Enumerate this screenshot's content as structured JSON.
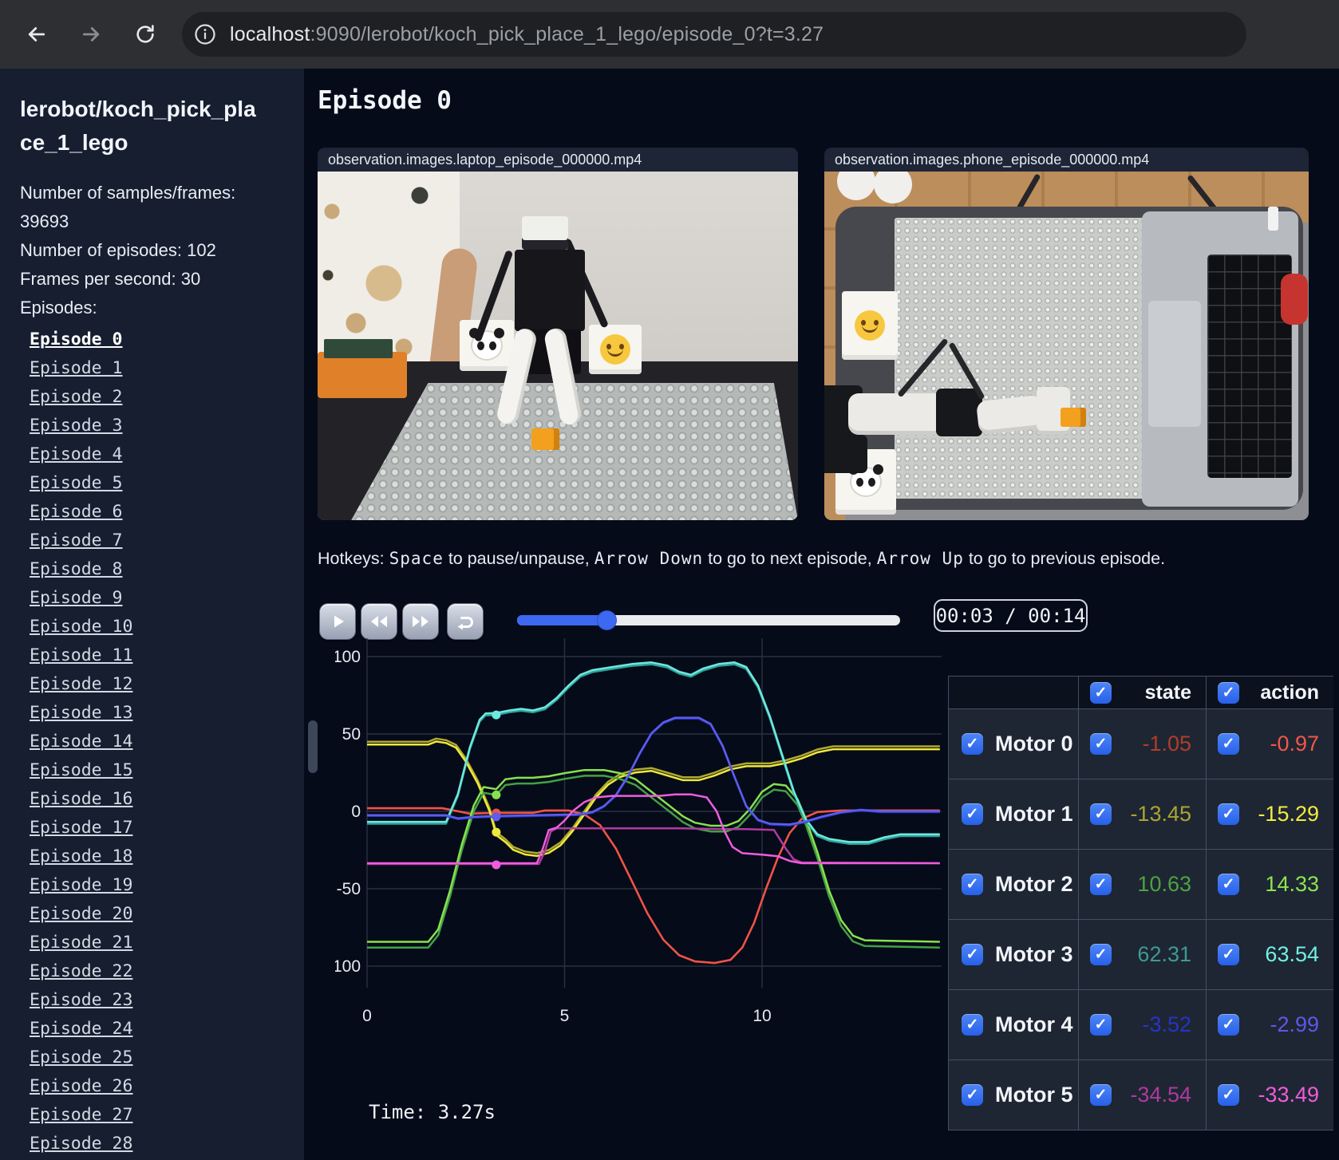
{
  "browser": {
    "url_host": "localhost",
    "url_rest": ":9090/lerobot/koch_pick_place_1_lego/episode_0?t=3.27"
  },
  "sidebar": {
    "title": "lerobot/koch_pick_place_1_lego",
    "stats": [
      "Number of samples/frames: 39693",
      "Number of episodes: 102",
      "Frames per second: 30"
    ],
    "episodes_label": "Episodes:",
    "active_episode": "Episode 0",
    "episodes": [
      "Episode 0",
      "Episode 1",
      "Episode 2",
      "Episode 3",
      "Episode 4",
      "Episode 5",
      "Episode 6",
      "Episode 7",
      "Episode 8",
      "Episode 9",
      "Episode 10",
      "Episode 11",
      "Episode 12",
      "Episode 13",
      "Episode 14",
      "Episode 15",
      "Episode 16",
      "Episode 17",
      "Episode 18",
      "Episode 19",
      "Episode 20",
      "Episode 21",
      "Episode 22",
      "Episode 23",
      "Episode 24",
      "Episode 25",
      "Episode 26",
      "Episode 27",
      "Episode 28"
    ]
  },
  "main": {
    "heading": "Episode 0",
    "videos": [
      {
        "title": "observation.images.laptop_episode_000000.mp4"
      },
      {
        "title": "observation.images.phone_episode_000000.mp4"
      }
    ],
    "hotkeys_segments": [
      {
        "text": "Hotkeys: ",
        "mono": false
      },
      {
        "text": "Space",
        "mono": true
      },
      {
        "text": " to pause/unpause, ",
        "mono": false
      },
      {
        "text": "Arrow Down",
        "mono": true
      },
      {
        "text": " to go to next episode, ",
        "mono": false
      },
      {
        "text": "Arrow Up",
        "mono": true
      },
      {
        "text": " to go to previous episode.",
        "mono": false
      }
    ],
    "player": {
      "time": "00:03 / 00:14",
      "progress_pct": 23.4
    },
    "time_label": "Time: 3.27s"
  },
  "table": {
    "headers": [
      "state",
      "action"
    ],
    "rows": [
      {
        "label": "Motor 0",
        "state": "-1.05",
        "action": "-0.97",
        "state_color": "#b23c2b",
        "action_color": "#f3564a"
      },
      {
        "label": "Motor 1",
        "state": "-13.45",
        "action": "-15.29",
        "state_color": "#aaa431",
        "action_color": "#f2ec3e"
      },
      {
        "label": "Motor 2",
        "state": "10.63",
        "action": "14.33",
        "state_color": "#4da33f",
        "action_color": "#8ce44e"
      },
      {
        "label": "Motor 3",
        "state": "62.31",
        "action": "63.54",
        "state_color": "#3f9a92",
        "action_color": "#72efe0"
      },
      {
        "label": "Motor 4",
        "state": "-3.52",
        "action": "-2.99",
        "state_color": "#2634c6",
        "action_color": "#5b58ea"
      },
      {
        "label": "Motor 5",
        "state": "-34.54",
        "action": "-33.49",
        "state_color": "#ae3a9d",
        "action_color": "#ee5cd9"
      }
    ]
  },
  "chart_data": {
    "type": "line",
    "xlabel": "",
    "ylabel": "",
    "x_ticks": [
      0,
      5,
      10
    ],
    "y_ticks": [
      100,
      50,
      0,
      -50,
      -100
    ],
    "xlim": [
      0,
      14.55
    ],
    "ylim": [
      -117,
      112
    ],
    "grid": true,
    "marker_t": 3.27,
    "series": [
      {
        "name": "Motor 0",
        "state_color": "#a4352a",
        "action_color": "#ef5348",
        "action_offset": 0.08,
        "marker_value": -1.05,
        "points": [
          [
            0,
            2
          ],
          [
            1.9,
            2
          ],
          [
            2.2,
            0.5
          ],
          [
            2.6,
            -1.5
          ],
          [
            3.27,
            -1.05
          ],
          [
            4.2,
            -1
          ],
          [
            4.5,
            0.5
          ],
          [
            5.1,
            0.5
          ],
          [
            5.5,
            -2
          ],
          [
            5.9,
            -9
          ],
          [
            6.3,
            -24
          ],
          [
            6.7,
            -45
          ],
          [
            7.1,
            -66
          ],
          [
            7.5,
            -83
          ],
          [
            7.9,
            -93
          ],
          [
            8.3,
            -97
          ],
          [
            8.8,
            -98
          ],
          [
            9.2,
            -96
          ],
          [
            9.5,
            -88
          ],
          [
            9.8,
            -72
          ],
          [
            10.1,
            -50
          ],
          [
            10.4,
            -30
          ],
          [
            10.7,
            -14
          ],
          [
            11.0,
            -5
          ],
          [
            11.4,
            -0.5
          ],
          [
            12.0,
            0.5
          ],
          [
            14.5,
            0.5
          ]
        ]
      },
      {
        "name": "Motor 1",
        "state_color": "#b1aa30",
        "action_color": "#efe83c",
        "action_offset": -1.84,
        "marker_value": -13.45,
        "points": [
          [
            0,
            45
          ],
          [
            1.55,
            45
          ],
          [
            1.75,
            47
          ],
          [
            2.0,
            46
          ],
          [
            2.25,
            43
          ],
          [
            2.5,
            34
          ],
          [
            2.8,
            20
          ],
          [
            3.1,
            2
          ],
          [
            3.27,
            -13.45
          ],
          [
            3.5,
            -18
          ],
          [
            3.7,
            -23
          ],
          [
            4.0,
            -26
          ],
          [
            4.3,
            -27
          ],
          [
            4.6,
            -25
          ],
          [
            4.9,
            -20
          ],
          [
            5.2,
            -11
          ],
          [
            5.5,
            0
          ],
          [
            5.8,
            11
          ],
          [
            6.1,
            19
          ],
          [
            6.4,
            24
          ],
          [
            6.8,
            27
          ],
          [
            7.2,
            28
          ],
          [
            7.6,
            25
          ],
          [
            8.0,
            22
          ],
          [
            8.4,
            22
          ],
          [
            8.8,
            25
          ],
          [
            9.2,
            29
          ],
          [
            9.6,
            31
          ],
          [
            10.2,
            31
          ],
          [
            10.6,
            33
          ],
          [
            11.0,
            36
          ],
          [
            11.4,
            40
          ],
          [
            11.8,
            42
          ],
          [
            14.5,
            42
          ]
        ]
      },
      {
        "name": "Motor 2",
        "state_color": "#43a046",
        "action_color": "#88e14f",
        "action_offset": 3.7,
        "marker_value": 10.63,
        "points": [
          [
            0,
            -88
          ],
          [
            1.55,
            -88
          ],
          [
            1.8,
            -80
          ],
          [
            2.1,
            -55
          ],
          [
            2.4,
            -25
          ],
          [
            2.7,
            0
          ],
          [
            2.95,
            12
          ],
          [
            3.27,
            10.63
          ],
          [
            3.5,
            17
          ],
          [
            3.8,
            18
          ],
          [
            4.2,
            18
          ],
          [
            4.6,
            19
          ],
          [
            5.0,
            21
          ],
          [
            5.5,
            23
          ],
          [
            6.0,
            23
          ],
          [
            6.4,
            21
          ],
          [
            6.8,
            17
          ],
          [
            7.1,
            11
          ],
          [
            7.4,
            5
          ],
          [
            7.7,
            -1
          ],
          [
            8.0,
            -7
          ],
          [
            8.3,
            -11
          ],
          [
            8.7,
            -13
          ],
          [
            9.1,
            -13
          ],
          [
            9.4,
            -10
          ],
          [
            9.7,
            -2
          ],
          [
            10.0,
            9
          ],
          [
            10.3,
            14
          ],
          [
            10.6,
            13
          ],
          [
            10.9,
            4
          ],
          [
            11.1,
            -8
          ],
          [
            11.4,
            -30
          ],
          [
            11.7,
            -55
          ],
          [
            12.0,
            -74
          ],
          [
            12.3,
            -84
          ],
          [
            12.6,
            -87
          ],
          [
            14.5,
            -88
          ]
        ]
      },
      {
        "name": "Motor 3",
        "state_color": "#31a09a",
        "action_color": "#6ceade",
        "action_offset": 1.23,
        "marker_value": 62.31,
        "points": [
          [
            0,
            -8
          ],
          [
            2.0,
            -8
          ],
          [
            2.3,
            10
          ],
          [
            2.6,
            40
          ],
          [
            2.85,
            58
          ],
          [
            3.0,
            62
          ],
          [
            3.27,
            62.31
          ],
          [
            3.6,
            64
          ],
          [
            3.9,
            65
          ],
          [
            4.2,
            64
          ],
          [
            4.5,
            66
          ],
          [
            4.8,
            72
          ],
          [
            5.1,
            80
          ],
          [
            5.4,
            87
          ],
          [
            5.7,
            90
          ],
          [
            6.2,
            92
          ],
          [
            6.7,
            94
          ],
          [
            7.2,
            95
          ],
          [
            7.6,
            93
          ],
          [
            7.9,
            89
          ],
          [
            8.2,
            87
          ],
          [
            8.5,
            91
          ],
          [
            8.9,
            94
          ],
          [
            9.3,
            95
          ],
          [
            9.6,
            92
          ],
          [
            9.9,
            80
          ],
          [
            10.2,
            60
          ],
          [
            10.5,
            36
          ],
          [
            10.8,
            12
          ],
          [
            11.1,
            -6
          ],
          [
            11.4,
            -16
          ],
          [
            11.7,
            -19
          ],
          [
            12.2,
            -21
          ],
          [
            12.7,
            -21
          ],
          [
            13.1,
            -18
          ],
          [
            13.5,
            -16
          ],
          [
            14.5,
            -16
          ]
        ]
      },
      {
        "name": "Motor 4",
        "state_color": "#2438c8",
        "action_color": "#5e5ceb",
        "action_offset": 0.53,
        "marker_value": -3.52,
        "points": [
          [
            0,
            -3
          ],
          [
            2.0,
            -3
          ],
          [
            2.3,
            -5
          ],
          [
            2.7,
            -4
          ],
          [
            3.27,
            -3.52
          ],
          [
            5.3,
            -2.5
          ],
          [
            5.7,
            -1
          ],
          [
            6.0,
            3
          ],
          [
            6.3,
            10
          ],
          [
            6.6,
            22
          ],
          [
            6.9,
            37
          ],
          [
            7.2,
            50
          ],
          [
            7.5,
            57
          ],
          [
            7.8,
            60
          ],
          [
            8.4,
            60
          ],
          [
            8.7,
            56
          ],
          [
            9.0,
            42
          ],
          [
            9.3,
            22
          ],
          [
            9.6,
            3
          ],
          [
            9.9,
            -6
          ],
          [
            10.2,
            -8.5
          ],
          [
            10.7,
            -9
          ],
          [
            11.1,
            -7
          ],
          [
            11.5,
            -4
          ],
          [
            12.0,
            -1
          ],
          [
            12.5,
            0.5
          ],
          [
            13.0,
            -0.5
          ],
          [
            14.5,
            -0.5
          ]
        ]
      },
      {
        "name": "Motor 5",
        "state_color": "#b03aa0",
        "action_color": "#ee5ddd",
        "marker_value": -34.54,
        "points": [
          [
            0,
            -34
          ],
          [
            4.35,
            -34
          ],
          [
            4.5,
            -26
          ],
          [
            4.65,
            -13
          ],
          [
            4.8,
            -11
          ],
          [
            6.0,
            -11
          ],
          [
            8.0,
            -11
          ],
          [
            9.0,
            -11.5
          ],
          [
            9.6,
            -11.5
          ],
          [
            10.3,
            -12
          ],
          [
            10.6,
            -24
          ],
          [
            10.8,
            -31
          ],
          [
            11.0,
            -33
          ],
          [
            14.5,
            -33.5
          ]
        ],
        "action_points": [
          [
            0,
            -33.5
          ],
          [
            4.3,
            -33.5
          ],
          [
            4.45,
            -24
          ],
          [
            4.6,
            -12
          ],
          [
            4.8,
            -10.5
          ],
          [
            5.0,
            -6
          ],
          [
            5.2,
            0
          ],
          [
            5.5,
            6
          ],
          [
            5.8,
            9
          ],
          [
            6.2,
            10
          ],
          [
            7.4,
            10
          ],
          [
            7.8,
            11
          ],
          [
            8.2,
            11
          ],
          [
            8.6,
            9
          ],
          [
            8.85,
            0
          ],
          [
            9.05,
            -13
          ],
          [
            9.25,
            -23
          ],
          [
            9.5,
            -27
          ],
          [
            10.0,
            -28
          ],
          [
            10.4,
            -29
          ],
          [
            10.7,
            -32
          ],
          [
            11.0,
            -33.5
          ],
          [
            14.5,
            -33.5
          ]
        ]
      }
    ]
  }
}
